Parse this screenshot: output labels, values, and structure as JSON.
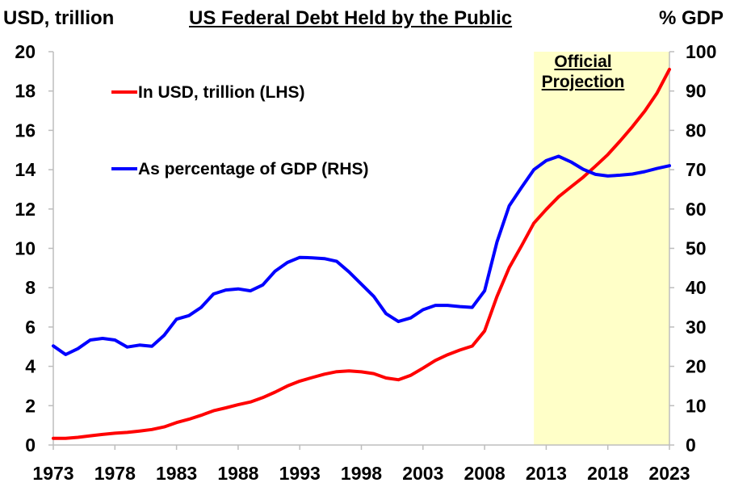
{
  "header": {
    "title": "US Federal Debt Held by the Public",
    "left_unit": "USD, trillion",
    "right_unit": "% GDP"
  },
  "annotation": {
    "line1": "Official",
    "line2": "Projection"
  },
  "colors": {
    "usd": "#ff0000",
    "gdp": "#0000ff",
    "projection": "#ffffc8",
    "axis": "#bdbdbd"
  },
  "chart_data": {
    "type": "line",
    "title": "US Federal Debt Held by the Public",
    "x_ticks": [
      1973,
      1978,
      1983,
      1988,
      1993,
      1998,
      2003,
      2008,
      2013,
      2018,
      2023
    ],
    "x_range": [
      1973,
      2023
    ],
    "projection_range": [
      2012,
      2023
    ],
    "y_left": {
      "label": "USD, trillion",
      "range": [
        0,
        20
      ],
      "ticks": [
        0,
        2,
        4,
        6,
        8,
        10,
        12,
        14,
        16,
        18,
        20
      ]
    },
    "y_right": {
      "label": "% GDP",
      "range": [
        0,
        100
      ],
      "ticks": [
        0,
        10,
        20,
        30,
        40,
        50,
        60,
        70,
        80,
        90,
        100
      ]
    },
    "legend": "top-left",
    "grid": false,
    "series": [
      {
        "name": "In USD, trillion (LHS)",
        "axis": "left",
        "x": [
          1973,
          1974,
          1975,
          1976,
          1977,
          1978,
          1979,
          1980,
          1981,
          1982,
          1983,
          1984,
          1985,
          1986,
          1987,
          1988,
          1989,
          1990,
          1991,
          1992,
          1993,
          1994,
          1995,
          1996,
          1997,
          1998,
          1999,
          2000,
          2001,
          2002,
          2003,
          2004,
          2005,
          2006,
          2007,
          2008,
          2009,
          2010,
          2011,
          2012,
          2013,
          2014,
          2015,
          2016,
          2017,
          2018,
          2019,
          2020,
          2021,
          2022,
          2023
        ],
        "values": [
          0.34,
          0.34,
          0.39,
          0.47,
          0.54,
          0.6,
          0.64,
          0.71,
          0.79,
          0.92,
          1.14,
          1.31,
          1.51,
          1.74,
          1.89,
          2.05,
          2.19,
          2.41,
          2.69,
          3.0,
          3.25,
          3.43,
          3.6,
          3.73,
          3.77,
          3.72,
          3.63,
          3.41,
          3.32,
          3.54,
          3.91,
          4.3,
          4.59,
          4.83,
          5.03,
          5.8,
          7.55,
          9.02,
          10.13,
          11.28,
          11.98,
          12.62,
          13.12,
          13.62,
          14.18,
          14.77,
          15.46,
          16.19,
          16.98,
          17.9,
          19.1
        ]
      },
      {
        "name": "As percentage of GDP (RHS)",
        "axis": "right",
        "x": [
          1973,
          1974,
          1975,
          1976,
          1977,
          1978,
          1979,
          1980,
          1981,
          1982,
          1983,
          1984,
          1985,
          1986,
          1987,
          1988,
          1989,
          1990,
          1991,
          1992,
          1993,
          1994,
          1995,
          1996,
          1997,
          1998,
          1999,
          2000,
          2001,
          2002,
          2003,
          2004,
          2005,
          2006,
          2007,
          2008,
          2009,
          2010,
          2011,
          2012,
          2013,
          2014,
          2015,
          2016,
          2017,
          2018,
          2019,
          2020,
          2021,
          2022,
          2023
        ],
        "values": [
          25.2,
          23.0,
          24.5,
          26.7,
          27.1,
          26.7,
          24.9,
          25.4,
          25.1,
          27.9,
          32.0,
          32.9,
          35.0,
          38.4,
          39.4,
          39.7,
          39.2,
          40.7,
          44.2,
          46.4,
          47.7,
          47.6,
          47.4,
          46.7,
          44.0,
          40.9,
          37.8,
          33.4,
          31.4,
          32.3,
          34.4,
          35.5,
          35.5,
          35.2,
          35.0,
          39.2,
          51.6,
          60.8,
          65.5,
          70.0,
          72.3,
          73.4,
          72.0,
          70.1,
          68.8,
          68.4,
          68.6,
          68.9,
          69.5,
          70.3,
          71.0
        ]
      }
    ]
  }
}
